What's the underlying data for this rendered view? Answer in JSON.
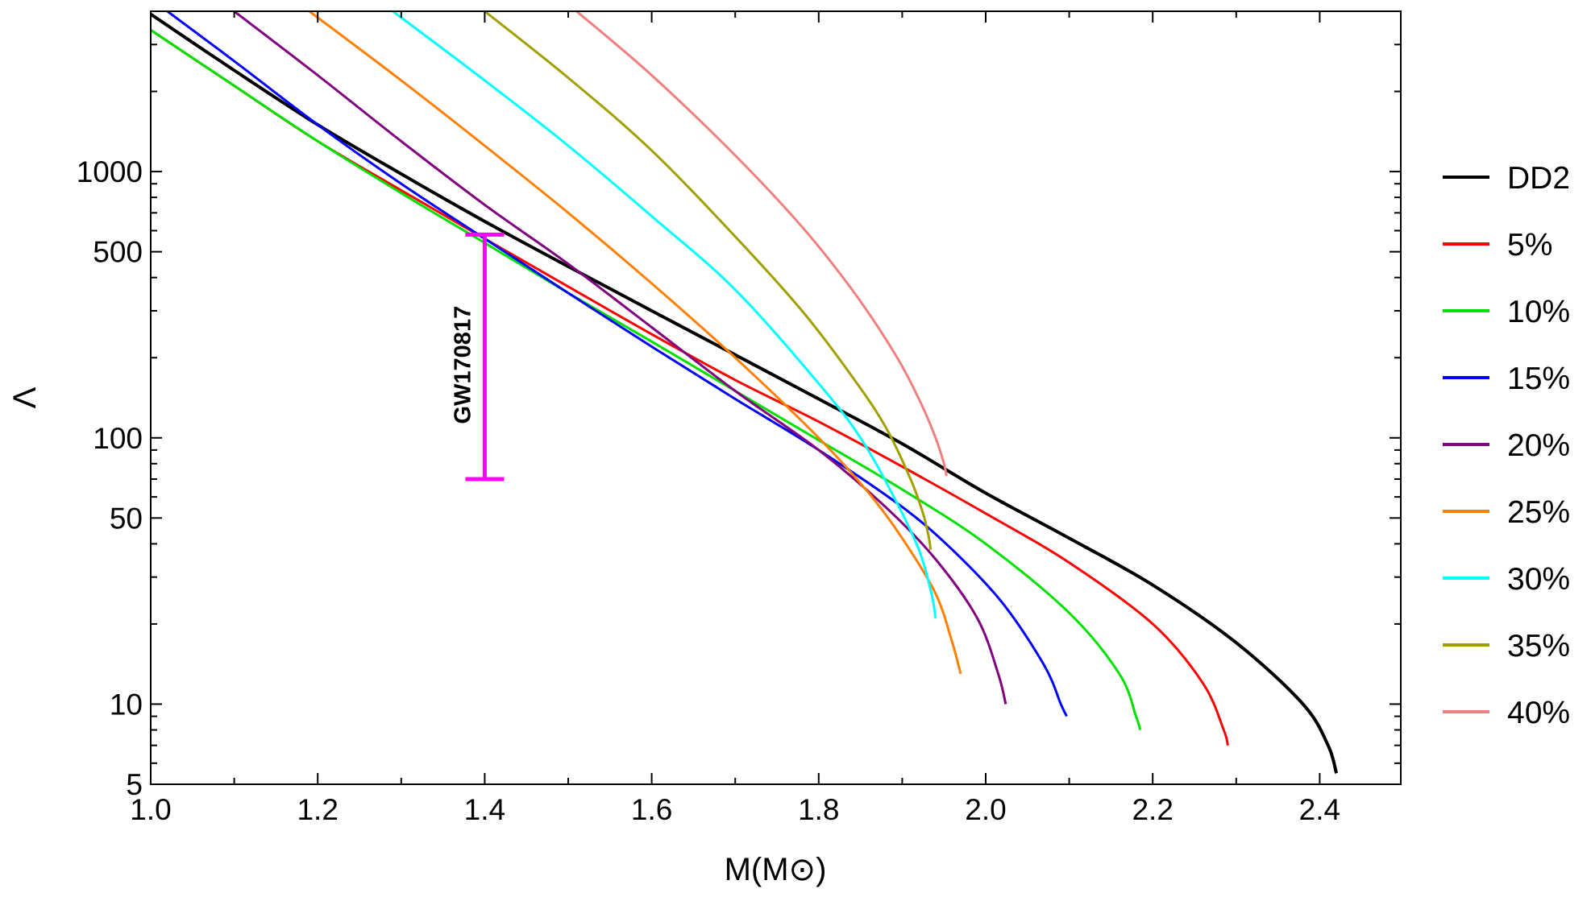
{
  "chart_data": {
    "type": "line",
    "title": "",
    "xlabel": "M(M⊙)",
    "ylabel": "Λ",
    "xlim": [
      1.0,
      2.5
    ],
    "ylim": [
      5,
      4000
    ],
    "yscale": "log",
    "grid": false,
    "legend_position": "right",
    "x_ticks": [
      "1.0",
      "1.2",
      "1.4",
      "1.6",
      "1.8",
      "2.0",
      "2.2",
      "2.4"
    ],
    "y_ticks": [
      "5",
      "10",
      "50",
      "100",
      "500",
      "1000"
    ],
    "series": [
      {
        "name": "DD2",
        "color": "#000000",
        "x": [
          1.0,
          1.1,
          1.2,
          1.3,
          1.4,
          1.5,
          1.6,
          1.7,
          1.8,
          1.9,
          2.0,
          2.1,
          2.2,
          2.3,
          2.38,
          2.41,
          2.42
        ],
        "y": [
          3900,
          2400,
          1500,
          980,
          650,
          440,
          300,
          205,
          140,
          95,
          62,
          42,
          28,
          17,
          10,
          7,
          5.5
        ]
      },
      {
        "name": "5%",
        "color": "#ff0000",
        "x": [
          1.0,
          1.1,
          1.2,
          1.3,
          1.4,
          1.5,
          1.6,
          1.7,
          1.8,
          1.9,
          2.0,
          2.1,
          2.2,
          2.26,
          2.285,
          2.29
        ],
        "y": [
          3400,
          2100,
          1300,
          850,
          560,
          370,
          245,
          165,
          115,
          78,
          52,
          34,
          20,
          12,
          8,
          7
        ]
      },
      {
        "name": "10%",
        "color": "#00e000",
        "x": [
          1.0,
          1.1,
          1.2,
          1.3,
          1.4,
          1.5,
          1.6,
          1.7,
          1.8,
          1.9,
          2.0,
          2.1,
          2.16,
          2.18,
          2.185
        ],
        "y": [
          3400,
          2100,
          1300,
          830,
          540,
          350,
          230,
          150,
          98,
          64,
          40,
          22,
          13,
          9,
          8
        ]
      },
      {
        "name": "15%",
        "color": "#0000ff",
        "x": [
          1.02,
          1.1,
          1.2,
          1.3,
          1.4,
          1.5,
          1.6,
          1.7,
          1.8,
          1.9,
          1.96,
          2.02,
          2.07,
          2.09,
          2.097
        ],
        "y": [
          4000,
          2600,
          1500,
          900,
          560,
          350,
          220,
          140,
          90,
          55,
          38,
          24,
          14,
          10,
          9
        ]
      },
      {
        "name": "20%",
        "color": "#800080",
        "x": [
          1.1,
          1.2,
          1.3,
          1.4,
          1.5,
          1.6,
          1.7,
          1.8,
          1.88,
          1.94,
          1.99,
          2.015,
          2.024
        ],
        "y": [
          4000,
          2300,
          1300,
          750,
          450,
          260,
          150,
          90,
          55,
          35,
          21,
          13,
          10
        ]
      },
      {
        "name": "25%",
        "color": "#ff8000",
        "x": [
          1.19,
          1.3,
          1.4,
          1.5,
          1.6,
          1.7,
          1.8,
          1.86,
          1.9,
          1.94,
          1.96,
          1.97
        ],
        "y": [
          4000,
          2200,
          1250,
          700,
          380,
          200,
          100,
          62,
          42,
          26,
          17,
          13
        ]
      },
      {
        "name": "30%",
        "color": "#00ffff",
        "x": [
          1.29,
          1.4,
          1.5,
          1.6,
          1.7,
          1.8,
          1.85,
          1.89,
          1.92,
          1.935,
          1.94
        ],
        "y": [
          4000,
          2200,
          1250,
          680,
          360,
          160,
          100,
          60,
          38,
          26,
          21
        ]
      },
      {
        "name": "35%",
        "color": "#a0a000",
        "x": [
          1.4,
          1.5,
          1.6,
          1.7,
          1.78,
          1.84,
          1.88,
          1.91,
          1.925,
          1.932,
          1.934
        ],
        "y": [
          4000,
          2250,
          1200,
          570,
          300,
          170,
          110,
          70,
          52,
          42,
          38
        ]
      },
      {
        "name": "40%",
        "color": "#f08080",
        "x": [
          1.51,
          1.6,
          1.7,
          1.78,
          1.84,
          1.89,
          1.92,
          1.94,
          1.95,
          1.953
        ],
        "y": [
          4000,
          2300,
          1150,
          620,
          360,
          210,
          140,
          100,
          80,
          72
        ]
      }
    ],
    "annotations": [
      {
        "label": "GW170817",
        "x": 1.4,
        "y_low": 70,
        "y_high": 580,
        "color": "#ff00ff"
      }
    ]
  }
}
